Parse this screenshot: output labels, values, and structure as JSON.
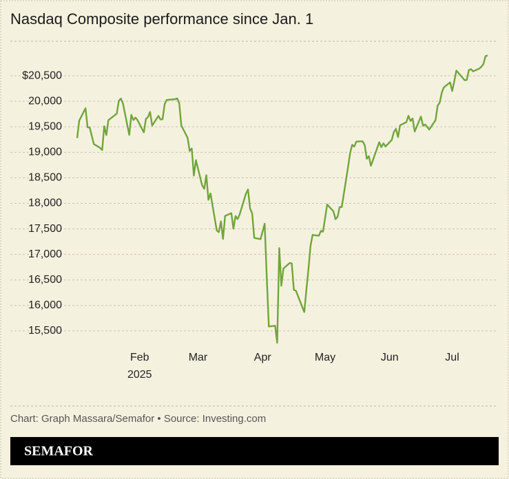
{
  "chart_data": {
    "type": "line",
    "title": "Nasdaq Composite performance since Jan. 1",
    "source": "Chart: Graph Massara/Semafor • Source: Investing.com",
    "color": "#6fa53a",
    "x": [
      1,
      2,
      5,
      6,
      7,
      9,
      12,
      13,
      14,
      15,
      16,
      20,
      21,
      22,
      23,
      26,
      27,
      28,
      29,
      30,
      33,
      34,
      35,
      36,
      37,
      40,
      41,
      42,
      43,
      44,
      48,
      49,
      50,
      51,
      54,
      55,
      56,
      57,
      58,
      61,
      62,
      63,
      64,
      65,
      68,
      69,
      70,
      71,
      72,
      75,
      76,
      77,
      78,
      79,
      82,
      83,
      84,
      85,
      86,
      89,
      90,
      91,
      92,
      93,
      96,
      97,
      98,
      99,
      100,
      103,
      104,
      105,
      106,
      110,
      111,
      112,
      113,
      114,
      117,
      118,
      119,
      120,
      121,
      124,
      125,
      126,
      127,
      128,
      131,
      132,
      133,
      134,
      135,
      138,
      139,
      140,
      141,
      142,
      146,
      147,
      148,
      149,
      152,
      153,
      154,
      155,
      156,
      159,
      160,
      161,
      162,
      163,
      166,
      167,
      168,
      170,
      173,
      174,
      175,
      176,
      177,
      180,
      181,
      182,
      183,
      187,
      188,
      189,
      190,
      191,
      194,
      195,
      196,
      197,
      198
    ],
    "values": [
      19280,
      19621,
      19864,
      19490,
      19489,
      19162,
      19088,
      19044,
      19511,
      19338,
      19630,
      19757,
      20009,
      20053,
      19954,
      19342,
      19734,
      19632,
      19681,
      19627,
      19392,
      19654,
      19692,
      19791,
      19523,
      19714,
      19643,
      19649,
      19945,
      20026,
      20041,
      20056,
      19962,
      19524,
      19286,
      19026,
      19075,
      18544,
      18847,
      18350,
      18285,
      18553,
      18069,
      18196,
      17468,
      17436,
      17648,
      17303,
      17754,
      17808,
      17504,
      17751,
      17692,
      17784,
      18189,
      18272,
      17900,
      17804,
      17323,
      17299,
      17449,
      17601,
      16551,
      15588,
      15603,
      15268,
      17125,
      16387,
      16724,
      16831,
      16824,
      16307,
      16286,
      15871,
      16300,
      16708,
      17166,
      17383,
      17366,
      17461,
      17446,
      17711,
      17978,
      17844,
      17690,
      17738,
      17929,
      17928,
      18708,
      18983,
      19147,
      19112,
      19211,
      19216,
      19143,
      18873,
      18925,
      18737,
      19199,
      19101,
      19176,
      19114,
      19243,
      19399,
      19460,
      19299,
      19530,
      19591,
      19715,
      19615,
      19663,
      19407,
      19701,
      19521,
      19546,
      19447,
      19631,
      19913,
      19973,
      20168,
      20273,
      20370,
      20202,
      20394,
      20601,
      20413,
      20418,
      20611,
      20630,
      20586,
      20640,
      20677,
      20730,
      20885,
      20896
    ],
    "xlim": [
      0,
      200
    ],
    "xticks": [
      {
        "value": 31,
        "label": "Feb"
      },
      {
        "value": 59,
        "label": "Mar"
      },
      {
        "value": 90,
        "label": "Apr"
      },
      {
        "value": 120,
        "label": "May"
      },
      {
        "value": 151,
        "label": "Jun"
      },
      {
        "value": 181,
        "label": "Jul"
      }
    ],
    "x_year_label": "2025",
    "ylim": [
      15000,
      21000
    ],
    "yticks": [
      {
        "value": 15500,
        "label": "15,500"
      },
      {
        "value": 16000,
        "label": "16,000"
      },
      {
        "value": 16500,
        "label": "16,500"
      },
      {
        "value": 17000,
        "label": "17,000"
      },
      {
        "value": 17500,
        "label": "17,500"
      },
      {
        "value": 18000,
        "label": "18,000"
      },
      {
        "value": 18500,
        "label": "18,500"
      },
      {
        "value": 19000,
        "label": "19,000"
      },
      {
        "value": 19500,
        "label": "19,500"
      },
      {
        "value": 20000,
        "label": "20,000"
      },
      {
        "value": 20500,
        "label": "$20,500"
      }
    ],
    "grid": true
  },
  "brand": "SEMAFOR"
}
